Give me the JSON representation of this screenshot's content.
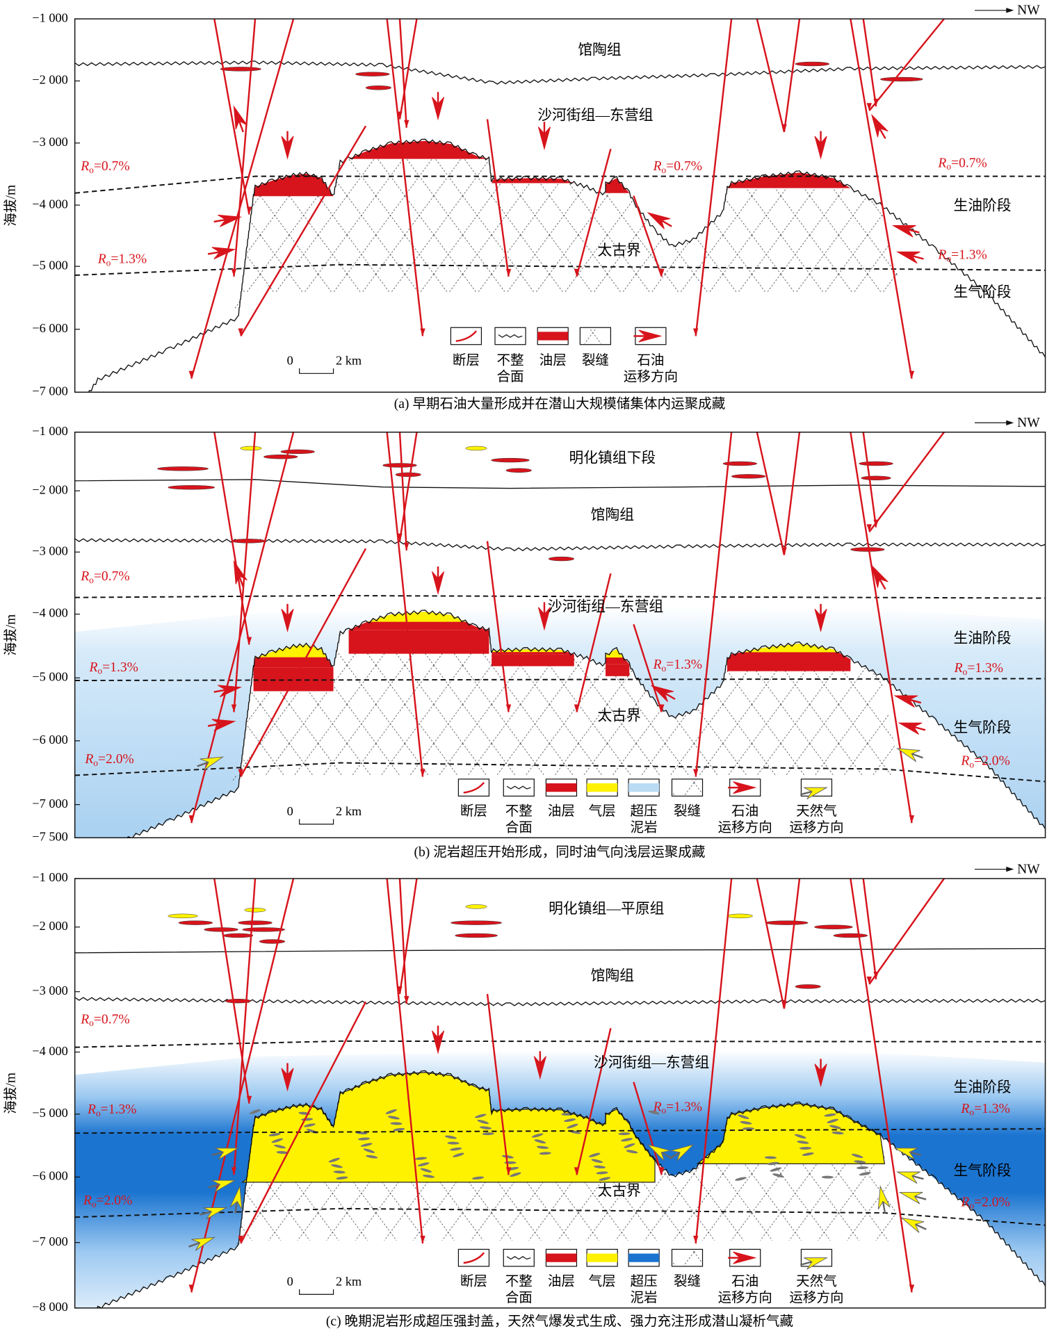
{
  "panels": [
    {
      "north": "NW",
      "y_axis_label": "海拔/m",
      "y_ticks": [
        "−1 000",
        "−2 000",
        "−3 000",
        "−4 000",
        "−5 000",
        "−6 000",
        "−7 000"
      ],
      "layers": [
        "馆陶组",
        "沙河街组—东营组",
        "生油阶段",
        "太古界",
        "生气阶段"
      ],
      "ro_labels": [
        {
          "symbol": "R",
          "subscript": "o",
          "value": "=0.7%"
        },
        {
          "symbol": "R",
          "subscript": "o",
          "value": "=0.7%"
        },
        {
          "symbol": "R",
          "subscript": "o",
          "value": "=0.7%"
        },
        {
          "symbol": "R",
          "subscript": "o",
          "value": "=1.3%"
        },
        {
          "symbol": "R",
          "subscript": "o",
          "value": "=1.3%"
        }
      ],
      "scale_bar": [
        "0",
        "2 km"
      ],
      "legend": [
        [
          "断层"
        ],
        [
          "不整",
          "合面"
        ],
        [
          "油层"
        ],
        [
          "裂缝"
        ],
        [
          "石油",
          "运移方向"
        ]
      ],
      "caption": "(a) 早期石油大量形成并在潜山大规模储集体内运聚成藏"
    },
    {
      "north": "NW",
      "y_axis_label": "海拔/m",
      "y_ticks": [
        "−1 000",
        "−2 000",
        "−3 000",
        "−4 000",
        "−5 000",
        "−6 000",
        "−7 000",
        "−7 500"
      ],
      "layers": [
        "明化镇组下段",
        "馆陶组",
        "沙河街组—东营组",
        "生油阶段",
        "太古界",
        "生气阶段"
      ],
      "ro_labels": [
        {
          "symbol": "R",
          "subscript": "o",
          "value": "=0.7%"
        },
        {
          "symbol": "R",
          "subscript": "o",
          "value": "=1.3%"
        },
        {
          "symbol": "R",
          "subscript": "o",
          "value": "=1.3%"
        },
        {
          "symbol": "R",
          "subscript": "o",
          "value": "=1.3%"
        },
        {
          "symbol": "R",
          "subscript": "o",
          "value": "=2.0%"
        },
        {
          "symbol": "R",
          "subscript": "o",
          "value": "=2.0%"
        }
      ],
      "scale_bar": [
        "0",
        "2 km"
      ],
      "legend": [
        [
          "断层"
        ],
        [
          "不整",
          "合面"
        ],
        [
          "油层"
        ],
        [
          "气层"
        ],
        [
          "超压",
          "泥岩"
        ],
        [
          "裂缝"
        ],
        [
          "石油",
          "运移方向"
        ],
        [
          "天然气",
          "运移方向"
        ]
      ],
      "caption": "(b) 泥岩超压开始形成，同时油气向浅层运聚成藏"
    },
    {
      "north": "NW",
      "y_axis_label": "海拔/m",
      "y_ticks": [
        "−1 000",
        "−2 000",
        "−3 000",
        "−4 000",
        "−5 000",
        "−6 000",
        "−7 000",
        "−8 000"
      ],
      "layers": [
        "明化镇组—平原组",
        "馆陶组",
        "沙河街组—东营组",
        "生油阶段",
        "太古界",
        "生气阶段"
      ],
      "ro_labels": [
        {
          "symbol": "R",
          "subscript": "o",
          "value": "=0.7%"
        },
        {
          "symbol": "R",
          "subscript": "o",
          "value": "=1.3%"
        },
        {
          "symbol": "R",
          "subscript": "o",
          "value": "=1.3%"
        },
        {
          "symbol": "R",
          "subscript": "o",
          "value": "=1.3%"
        },
        {
          "symbol": "R",
          "subscript": "o",
          "value": "=2.0%"
        },
        {
          "symbol": "R",
          "subscript": "o",
          "value": "=2.0%"
        }
      ],
      "scale_bar": [
        "0",
        "2 km"
      ],
      "legend": [
        [
          "断层"
        ],
        [
          "不整",
          "合面"
        ],
        [
          "油层"
        ],
        [
          "气层"
        ],
        [
          "超压",
          "泥岩"
        ],
        [
          "裂缝"
        ],
        [
          "石油",
          "运移方向"
        ],
        [
          "天然气",
          "运移方向"
        ]
      ],
      "caption": "(c) 晚期泥岩形成超压强封盖，天然气爆发式生成、强力充注形成潜山凝析气藏"
    }
  ]
}
